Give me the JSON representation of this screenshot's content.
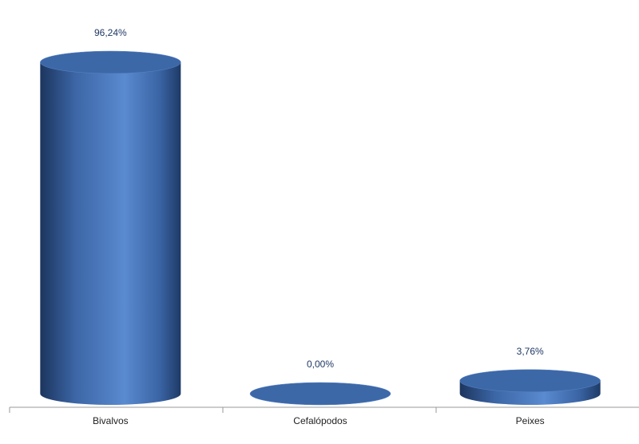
{
  "chart_data": {
    "type": "bar",
    "categories": [
      "Bivalvos",
      "Cefalópodos",
      "Peixes"
    ],
    "values": [
      96.24,
      0.0,
      3.76
    ],
    "value_labels": [
      "96,24%",
      "0,00%",
      "3,76%"
    ],
    "color": "#4a7cc0"
  }
}
